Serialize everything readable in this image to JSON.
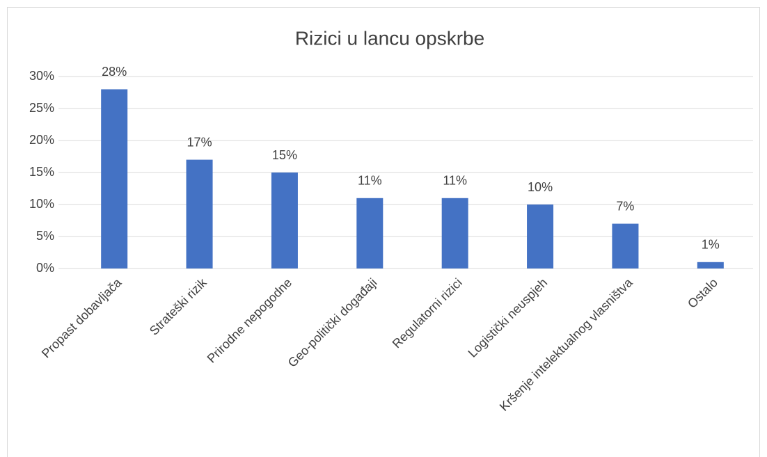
{
  "chart_data": {
    "type": "bar",
    "title": "Rizici u lancu opskrbe",
    "categories": [
      "Propast dobavljača",
      "Strateški rizik",
      "Prirodne nepogodne",
      "Geo-politički događaji",
      "Regulatorni rizici",
      "Logistički neuspjeh",
      "Kršenje intelektualnog vlasništva",
      "Ostalo"
    ],
    "values": [
      28,
      17,
      15,
      11,
      11,
      10,
      7,
      1
    ],
    "value_labels": [
      "28%",
      "17%",
      "15%",
      "11%",
      "11%",
      "10%",
      "7%",
      "1%"
    ],
    "color": "#4472c4",
    "ylim": [
      0,
      30
    ],
    "yticks": [
      {
        "value": 0,
        "label": "0%"
      },
      {
        "value": 5,
        "label": "5%"
      },
      {
        "value": 10,
        "label": "10%"
      },
      {
        "value": 15,
        "label": "15%"
      },
      {
        "value": 20,
        "label": "20%"
      },
      {
        "value": 25,
        "label": "25%"
      },
      {
        "value": 30,
        "label": "30%"
      }
    ],
    "grid": true
  }
}
